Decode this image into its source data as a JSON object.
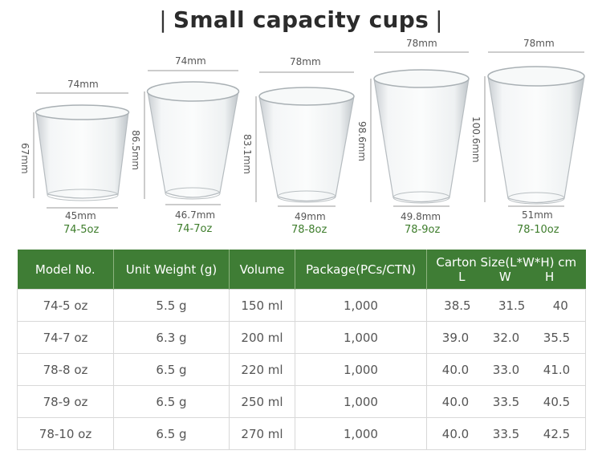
{
  "title": "Small capacity cups",
  "title_bar": "|",
  "cups": [
    {
      "top_width": "74mm",
      "height": "67mm",
      "bottom_width": "45mm",
      "model": "74-5oz"
    },
    {
      "top_width": "74mm",
      "height": "86.5mm",
      "bottom_width": "46.7mm",
      "model": "74-7oz"
    },
    {
      "top_width": "78mm",
      "height": "83.1mm",
      "bottom_width": "49mm",
      "model": "78-8oz"
    },
    {
      "top_width": "78mm",
      "height": "98.6mm",
      "bottom_width": "49.8mm",
      "model": "78-9oz"
    },
    {
      "top_width": "78mm",
      "height": "100.6mm",
      "bottom_width": "51mm",
      "model": "78-10oz"
    }
  ],
  "table": {
    "headers": {
      "model": "Model No.",
      "weight": "Unit Weight (g)",
      "volume": "Volume",
      "package": "Package(PCs/CTN)",
      "carton": "Carton Size(L*W*H) cm",
      "carton_l": "L",
      "carton_w": "W",
      "carton_h": "H"
    },
    "rows": [
      {
        "model": "74-5 oz",
        "weight": "5.5 g",
        "volume": "150 ml",
        "package": "1,000",
        "l": "38.5",
        "w": "31.5",
        "h": "40"
      },
      {
        "model": "74-7 oz",
        "weight": "6.3 g",
        "volume": "200 ml",
        "package": "1,000",
        "l": "39.0",
        "w": "32.0",
        "h": "35.5"
      },
      {
        "model": "78-8 oz",
        "weight": "6.5 g",
        "volume": "220 ml",
        "package": "1,000",
        "l": "40.0",
        "w": "33.0",
        "h": "41.0"
      },
      {
        "model": "78-9 oz",
        "weight": "6.5 g",
        "volume": "250 ml",
        "package": "1,000",
        "l": "40.0",
        "w": "33.5",
        "h": "40.5"
      },
      {
        "model": "78-10 oz",
        "weight": "6.5 g",
        "volume": "270 ml",
        "package": "1,000",
        "l": "40.0",
        "w": "33.5",
        "h": "42.5"
      }
    ]
  }
}
